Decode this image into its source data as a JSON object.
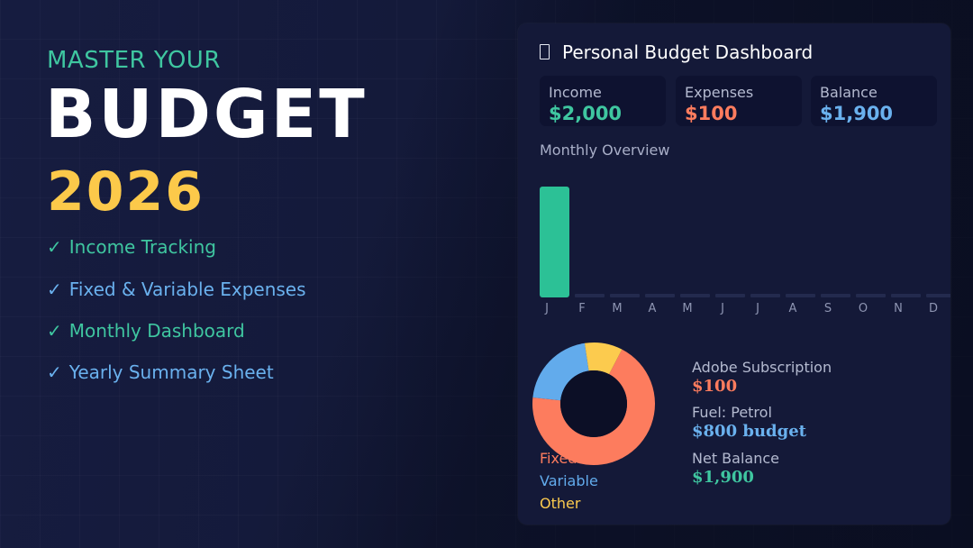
{
  "hero": {
    "kicker": "MASTER YOUR",
    "title": "BUDGET",
    "year": "2026",
    "check_glyph": "✓",
    "features": [
      "Income Tracking",
      "Fixed & Variable Expenses",
      "Monthly Dashboard",
      "Yearly Summary Sheet"
    ]
  },
  "dashboard": {
    "title_icon": "clipboard-icon",
    "title": "Personal Budget Dashboard",
    "cards": [
      {
        "label": "Income",
        "value": "$2,000",
        "color": "#3fc6a0"
      },
      {
        "label": "Expenses",
        "value": "$100",
        "color": "#fd7c5e"
      },
      {
        "label": "Balance",
        "value": "$1,900",
        "color": "#6ab1ee"
      }
    ],
    "overview_label": "Monthly Overview",
    "chart_data": {
      "type": "bar",
      "categories": [
        "J",
        "F",
        "M",
        "A",
        "M",
        "J",
        "J",
        "A",
        "S",
        "O",
        "N",
        "D"
      ],
      "values": [
        2000,
        0,
        0,
        0,
        0,
        0,
        0,
        0,
        0,
        0,
        0,
        0
      ],
      "ylim": [
        0,
        2000
      ],
      "bar_color": "#2cc196",
      "grid": false
    },
    "donut": {
      "type": "pie",
      "slices": [
        {
          "label": "Fixed",
          "share": 0.69,
          "color": "#fd7c5e"
        },
        {
          "label": "Variable",
          "share": 0.21,
          "color": "#62abec"
        },
        {
          "label": "Other",
          "share": 0.1,
          "color": "#fccb4e"
        }
      ]
    },
    "details": [
      {
        "label": "Adobe Subscription",
        "value": "$100",
        "color": "#fd7c5e"
      },
      {
        "label": "Fuel: Petrol",
        "value": "$800 budget",
        "color": "#6ab1ee"
      },
      {
        "label": "Net Balance",
        "value": "$1,900",
        "color": "#3fc6a0"
      }
    ]
  }
}
